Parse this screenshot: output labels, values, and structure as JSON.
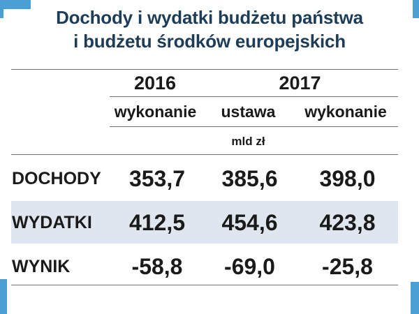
{
  "title": {
    "line1": "Dochody i wydatki budżetu państwa",
    "line2": "i budżetu środków europejskich"
  },
  "table": {
    "years": [
      "2016",
      "2017"
    ],
    "subheaders": [
      "wykonanie",
      "ustawa",
      "wykonanie"
    ],
    "unit": "mld zł",
    "rows": [
      {
        "label": "DOCHODY",
        "values": [
          "353,7",
          "385,6",
          "398,0"
        ]
      },
      {
        "label": "WYDATKI",
        "values": [
          "412,5",
          "454,6",
          "423,8"
        ]
      },
      {
        "label": "WYNIK",
        "values": [
          "-58,8",
          "-69,0",
          "-25,8"
        ]
      }
    ]
  },
  "colors": {
    "accent": "#4a9fd4",
    "title": "#1c3c58",
    "highlight_row": "#dfe6ef",
    "text": "#1a1a1a"
  }
}
